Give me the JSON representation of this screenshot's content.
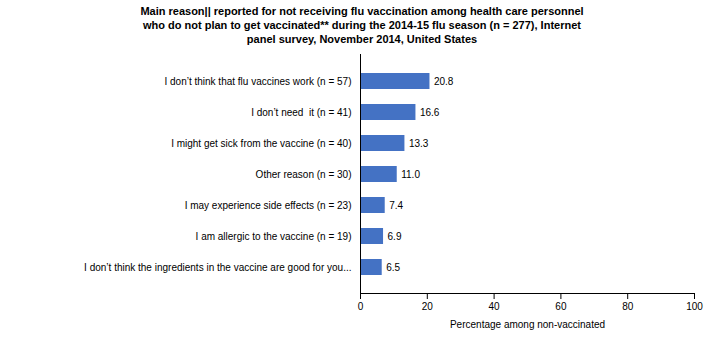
{
  "chart_data": {
    "type": "bar",
    "title": "Main reason|| reported for not receiving flu vaccination among health care personnel\nwho do not plan to get vaccinated** during the 2014-15 flu season (n = 277), Internet\npanel survey, November 2014, United States",
    "categories": [
      "I don’t think that flu vaccines work (n = 57)",
      "I don’t need  it (n = 41)",
      "I might get sick from the vaccine (n = 40)",
      "Other reason (n = 30)",
      "I may experience side effects (n = 23)",
      "I am allergic to the vaccine (n = 19)",
      "I don’t think the ingredients in the vaccine are good for you..."
    ],
    "values": [
      20.8,
      16.6,
      13.3,
      11.0,
      7.4,
      6.9,
      6.5
    ],
    "value_labels": [
      "20.8",
      "16.6",
      "13.3",
      "11.0",
      "7.4",
      "6.9",
      "6.5"
    ],
    "color": "#4472C4",
    "xlabel": "Percentage among non-vaccinated",
    "xlim": [
      0,
      100
    ],
    "xticks": [
      0,
      20,
      40,
      60,
      80,
      100
    ],
    "orientation": "horizontal",
    "data_labels": true,
    "grid": false
  }
}
